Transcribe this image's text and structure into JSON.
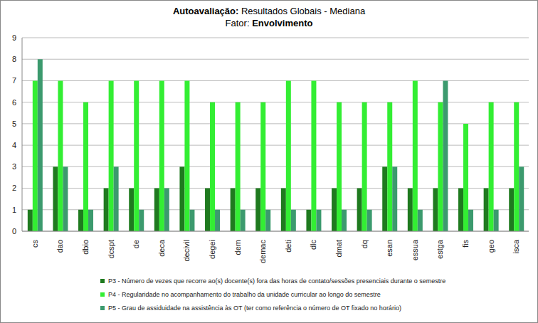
{
  "chart_data": {
    "type": "bar",
    "title": "Autoavaliação: Resultados Globais - Mediana",
    "subtitle": "Fator: Envolvimento",
    "categories": [
      "cs",
      "dao",
      "dbio",
      "dcspt",
      "de",
      "deca",
      "decivil",
      "degei",
      "dem",
      "demac",
      "deti",
      "dlc",
      "dmat",
      "dq",
      "esan",
      "essua",
      "estga",
      "fis",
      "geo",
      "isca"
    ],
    "series": [
      {
        "name": "P3 - Número de vezes que recorre ao(s) docente(s) fora das horas de contato/sessões presenciais durante o semestre",
        "color": "#1f7a1f",
        "values": [
          1,
          3,
          1,
          2,
          2,
          2,
          3,
          2,
          2,
          2,
          2,
          1,
          2,
          2,
          3,
          2,
          2,
          2,
          2,
          2
        ]
      },
      {
        "name": "P4 - Regularidade no acompanhamento do trabalho da unidade curricular ao longo do semestre",
        "color": "#33ee33",
        "values": [
          7,
          7,
          6,
          7,
          7,
          7,
          7,
          6,
          6,
          6,
          7,
          7,
          6,
          6,
          6,
          7,
          6,
          5,
          6,
          6
        ]
      },
      {
        "name": "P5 - Grau de assiduidade na assistência às OT (ter como referência o número de OT fixado no horário)",
        "color": "#3c9a6e",
        "values": [
          8,
          3,
          1,
          3,
          1,
          2,
          1,
          1,
          1,
          1,
          1,
          1,
          1,
          1,
          3,
          1,
          7,
          1,
          1,
          3
        ]
      }
    ],
    "ylim": [
      0,
      9
    ],
    "yticks": [
      0,
      1,
      2,
      3,
      4,
      5,
      6,
      7,
      8,
      9
    ],
    "grid": true,
    "legend": "bottom"
  }
}
